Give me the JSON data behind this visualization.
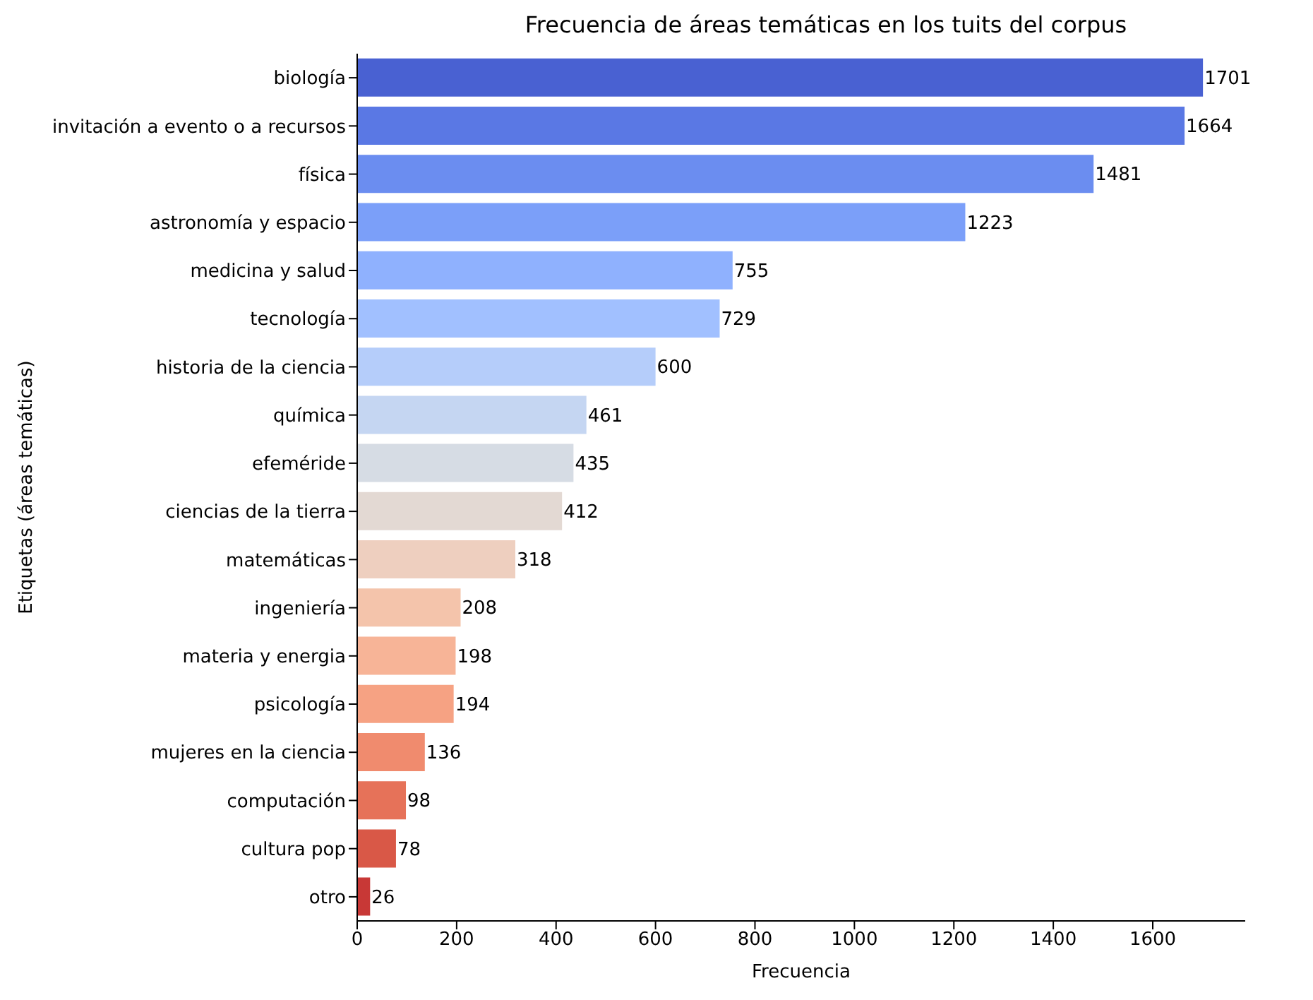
{
  "chart_data": {
    "type": "bar",
    "orientation": "horizontal",
    "title": "Frecuencia de áreas temáticas en los tuits del corpus",
    "xlabel": "Frecuencia",
    "ylabel": "Etiquetas (áreas temáticas)",
    "categories": [
      "biología",
      "invitación a evento o a recursos",
      "física",
      "astronomía y espacio",
      "medicina y salud",
      "tecnología",
      "historia de la ciencia",
      "química",
      "efeméride",
      "ciencias de la tierra",
      "matemáticas",
      "ingeniería",
      "materia y energia",
      "psicología",
      "mujeres en la ciencia",
      "computación",
      "cultura pop",
      "otro"
    ],
    "values": [
      1701,
      1664,
      1481,
      1223,
      755,
      729,
      600,
      461,
      435,
      412,
      318,
      208,
      198,
      194,
      136,
      98,
      78,
      26
    ],
    "colors": [
      "#4961d2",
      "#5a78e4",
      "#6b8df0",
      "#7b9ff9",
      "#8fb1fe",
      "#a1c0ff",
      "#b5cdfa",
      "#c5d6f2",
      "#d6dce4",
      "#e3d9d3",
      "#eecfbf",
      "#f4c4ab",
      "#f7b497",
      "#f6a283",
      "#f08b6e",
      "#e67259",
      "#d95847",
      "#c83836"
    ],
    "xlim": [
      0,
      1786
    ],
    "xticks": [
      0,
      200,
      400,
      600,
      800,
      1000,
      1200,
      1400,
      1600
    ],
    "data_labels": true
  }
}
